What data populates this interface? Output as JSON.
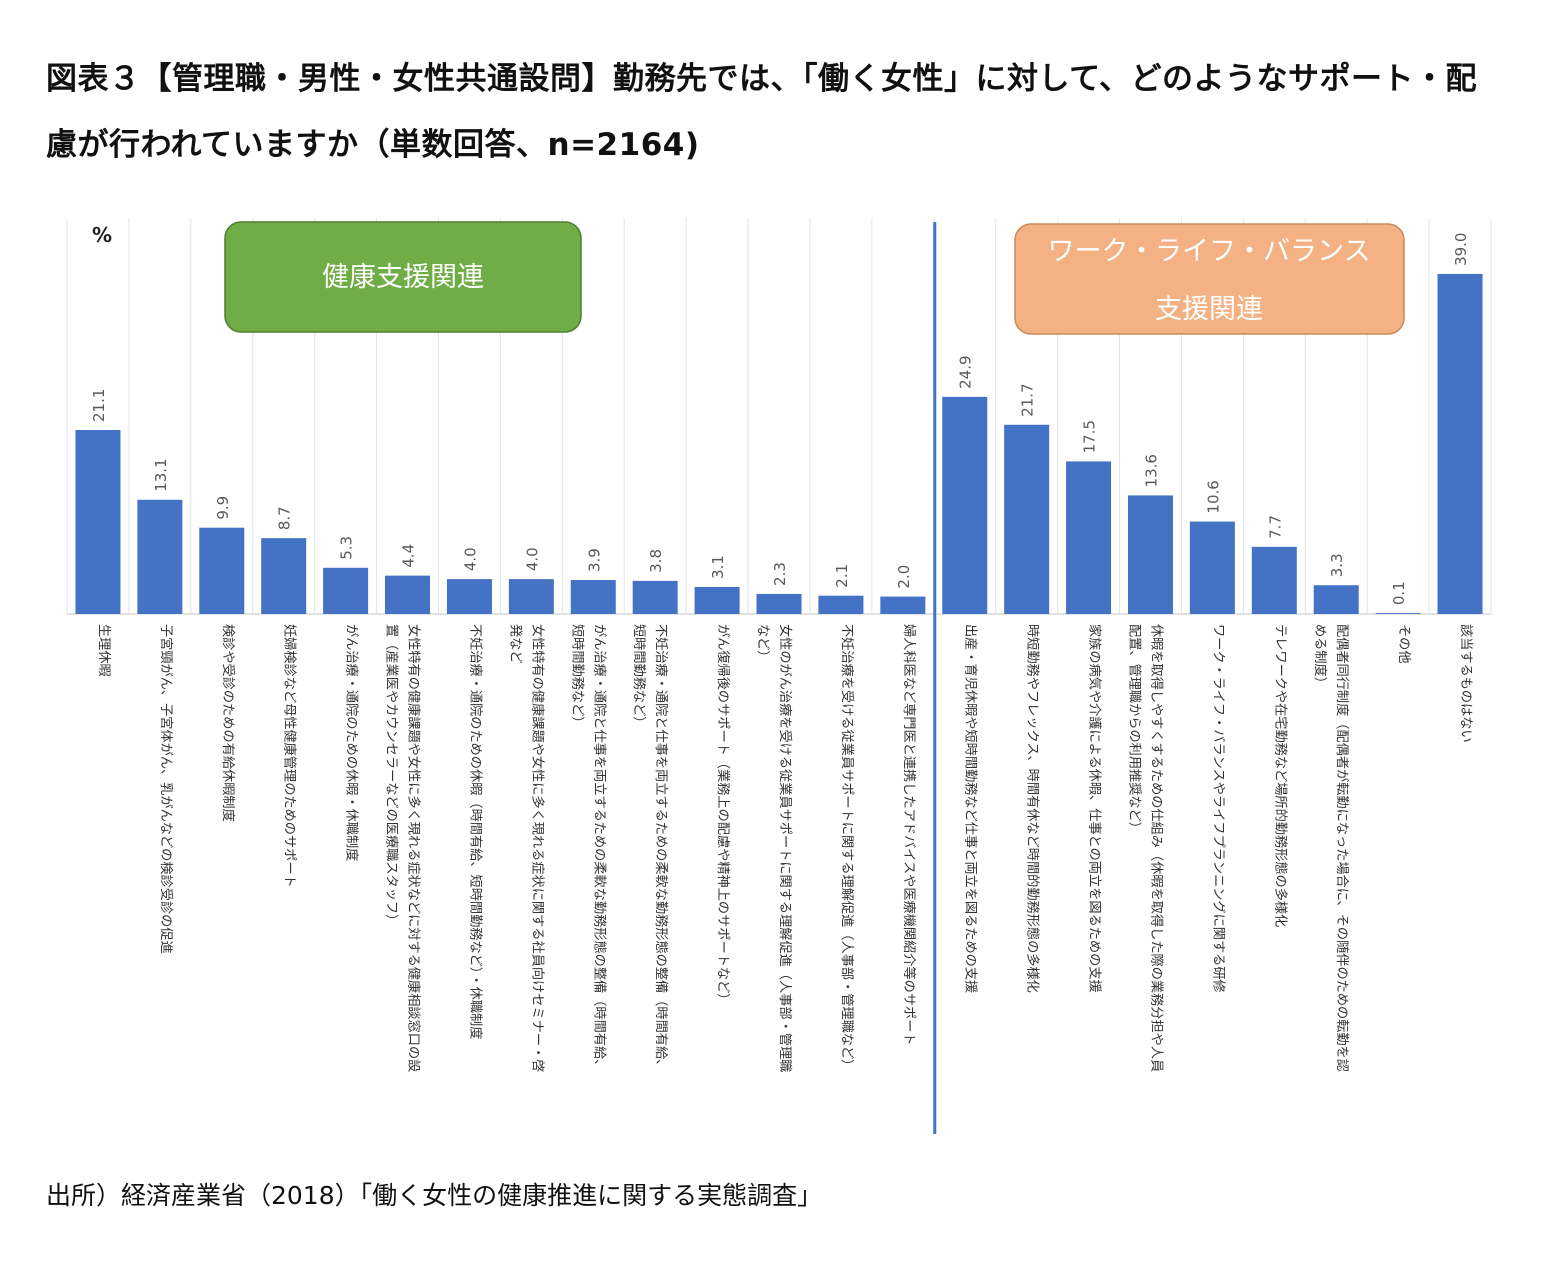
{
  "title": {
    "line1": "図表３【管理職・男性・女性共通設問】勤務先では、「働く女性」に対して、どのようなサポート・配",
    "line2": "慮が行われていますか（単数回答、n=2164)"
  },
  "source": "出所）経済産業省（2018）「働く女性の健康推進に関する実態調査」",
  "chart_data": {
    "type": "bar",
    "unit_label": "%",
    "ylim": [
      0,
      42
    ],
    "grid": "vertical separators",
    "group_labels": {
      "health": "健康支援関連",
      "wlb_line1": "ワーク・ライフ・バランス",
      "wlb_line2": "支援関連"
    },
    "colors": {
      "bar": "#4472C4",
      "health_box": "#70AD47",
      "health_box_border": "#507e32",
      "wlb_box": "#F4B183",
      "wlb_box_border": "#c9895a",
      "divider": "#4472C4"
    },
    "categories": [
      [
        "生理休暇"
      ],
      [
        "子宮頸がん、子宮体がん、乳がんなどの検診受診の促進"
      ],
      [
        "検診や受診のための有給休暇制度"
      ],
      [
        "妊婦検診など母性健康管理のためのサポート"
      ],
      [
        "がん治療・通院のための休暇・休職制度"
      ],
      [
        "女性特有の健康課題や女性に多く現れる症状などに対する健康相談窓口の設",
        "置（産業医やカウンセラーなどの医療職スタッフ）"
      ],
      [
        "不妊治療・通院のための休暇（時間有給、短時間勤務など）・休職制度"
      ],
      [
        "女性特有の健康課題や女性に多く現れる症状に関する社員向けセミナー・啓",
        "発など"
      ],
      [
        "がん治療・通院と仕事を両立するための柔軟な勤務形態の整備（時間有給、",
        "短時間勤務など）"
      ],
      [
        "不妊治療・通院と仕事を両立するための柔軟な勤務形態の整備（時間有給、",
        "短時間勤務など）"
      ],
      [
        "がん復帰後のサポート（業務上の配慮や精神上のサポートなど）"
      ],
      [
        "女性のがん治療を受ける従業員サポートに関する理解促進（人事部・管理職",
        "など）"
      ],
      [
        "不妊治療を受ける従業員サポートに関する理解促進（人事部・管理職など）"
      ],
      [
        "婦人科医など専門医と連携したアドバイスや医療機関紹介等のサポート"
      ],
      [
        "出産・育児休暇や短時間勤務など仕事と両立を図るための支援"
      ],
      [
        "時短勤務やフレックス、時間有休など時間的勤務形態の多様化"
      ],
      [
        "家族の病気や介護による休暇、仕事との両立を図るための支援"
      ],
      [
        "休暇を取得しやすくするための仕組み（休暇を取得した際の業務分担や人員",
        "配置、管理職からの利用推奨など）"
      ],
      [
        "ワーク・ライフ・バランスやライフプランニングに関する研修"
      ],
      [
        "テレワークや在宅勤務など場所的勤務形態の多様化"
      ],
      [
        "配偶者同行制度（配偶者が転勤になった場合に、その随伴のための転勤を認",
        "める制度）"
      ],
      [
        "その他"
      ],
      [
        "該当するものはない"
      ]
    ],
    "values": [
      21.1,
      13.1,
      9.9,
      8.7,
      5.3,
      4.4,
      4.0,
      4.0,
      3.9,
      3.8,
      3.1,
      2.3,
      2.1,
      2.0,
      24.9,
      21.7,
      17.5,
      13.6,
      10.6,
      7.7,
      3.3,
      0.1,
      39.0
    ],
    "value_labels": [
      "21.1",
      "13.1",
      "9.9",
      "8.7",
      "5.3",
      "4.4",
      "4.0",
      "4.0",
      "3.9",
      "3.8",
      "3.1",
      "2.3",
      "2.1",
      "2.0",
      "24.9",
      "21.7",
      "17.5",
      "13.6",
      "10.6",
      "7.7",
      "3.3",
      "0.1",
      "39.0"
    ]
  }
}
